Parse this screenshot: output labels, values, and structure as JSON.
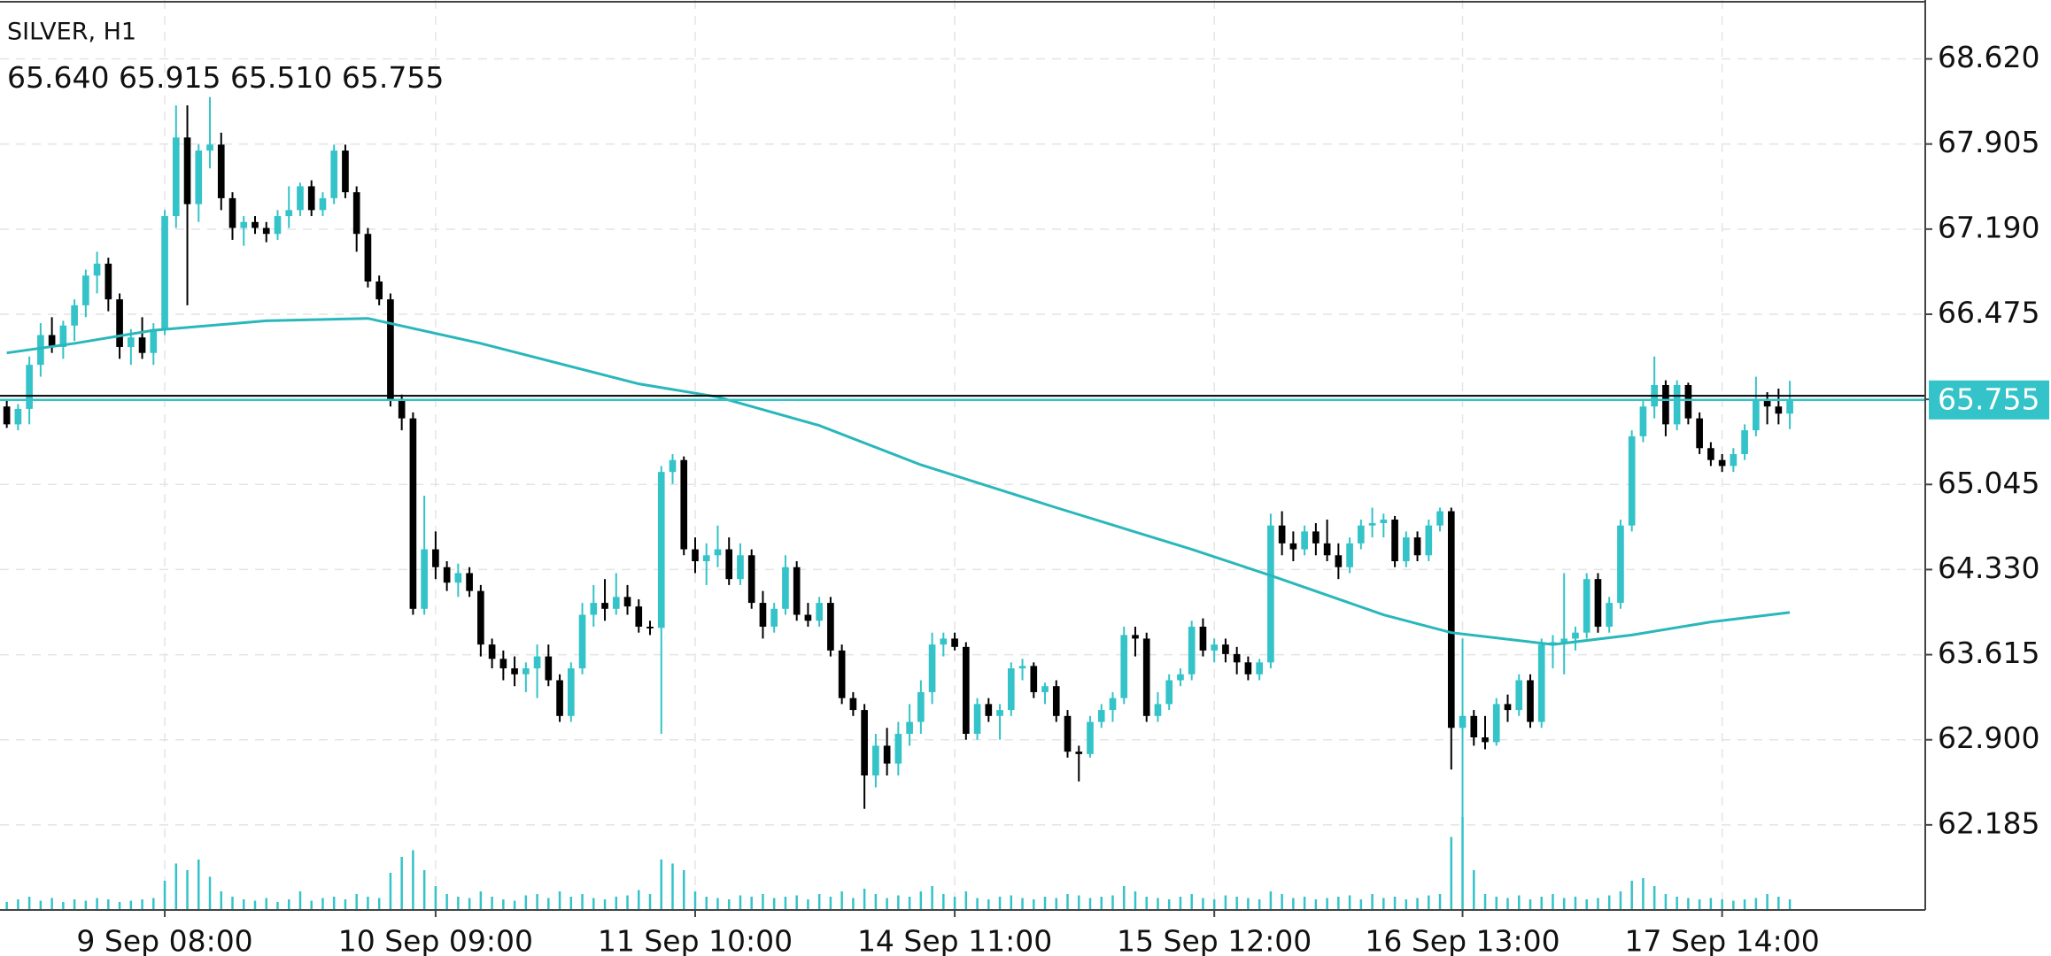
{
  "chart_data": {
    "type": "candlestick",
    "title": "SILVER, H1",
    "ohlc_labels": [
      "65.640",
      "65.915",
      "65.510",
      "65.755"
    ],
    "up_color": "#33c3c8",
    "down_color": "#000000",
    "ma_color": "#2ab7bb",
    "volume_color": "#33c3c8",
    "grid": true,
    "xlim": [
      -0.6,
      170
    ],
    "xticks": [
      {
        "value": 14,
        "label": "9 Sep 08:00"
      },
      {
        "value": 38,
        "label": "10 Sep 09:00"
      },
      {
        "value": 61,
        "label": "11 Sep 10:00"
      },
      {
        "value": 84,
        "label": "14 Sep 11:00"
      },
      {
        "value": 107,
        "label": "15 Sep 12:00"
      },
      {
        "value": 129,
        "label": "16 Sep 13:00"
      },
      {
        "value": 152,
        "label": "17 Sep 14:00"
      }
    ],
    "ylim": [
      61.47,
      69.115
    ],
    "yticks": [
      62.185,
      {
        "value": 62.9,
        "label": "62.900"
      },
      63.615,
      {
        "value": 64.33,
        "label": "64.330"
      },
      65.045,
      65.76,
      66.475,
      {
        "value": 67.19,
        "label": "67.190"
      },
      67.905,
      {
        "value": 68.62,
        "label": "68.620"
      }
    ],
    "current_price": {
      "value": 65.755,
      "label": "65.755"
    },
    "ask_line": 65.79,
    "ohlc": [
      [
        65.7,
        65.76,
        65.52,
        65.55
      ],
      [
        65.55,
        65.72,
        65.5,
        65.68
      ],
      [
        65.68,
        66.12,
        65.55,
        66.05
      ],
      [
        66.05,
        66.4,
        65.95,
        66.3
      ],
      [
        66.3,
        66.45,
        66.15,
        66.2
      ],
      [
        66.2,
        66.42,
        66.1,
        66.38
      ],
      [
        66.38,
        66.6,
        66.25,
        66.55
      ],
      [
        66.55,
        66.85,
        66.45,
        66.8
      ],
      [
        66.8,
        67.0,
        66.65,
        66.9
      ],
      [
        66.9,
        66.95,
        66.5,
        66.6
      ],
      [
        66.6,
        66.65,
        66.1,
        66.2
      ],
      [
        66.2,
        66.35,
        66.05,
        66.28
      ],
      [
        66.28,
        66.45,
        66.1,
        66.15
      ],
      [
        66.15,
        66.4,
        66.05,
        66.35
      ],
      [
        66.35,
        67.35,
        66.3,
        67.3
      ],
      [
        67.3,
        68.23,
        67.2,
        67.96
      ],
      [
        67.96,
        68.23,
        66.55,
        67.4
      ],
      [
        67.4,
        67.9,
        67.25,
        67.85
      ],
      [
        67.85,
        68.3,
        67.7,
        67.9
      ],
      [
        67.9,
        68.0,
        67.35,
        67.45
      ],
      [
        67.45,
        67.5,
        67.1,
        67.2
      ],
      [
        67.2,
        67.3,
        67.05,
        67.25
      ],
      [
        67.25,
        67.3,
        67.15,
        67.2
      ],
      [
        67.2,
        67.25,
        67.08,
        67.15
      ],
      [
        67.15,
        67.35,
        67.1,
        67.3
      ],
      [
        67.3,
        67.55,
        67.2,
        67.35
      ],
      [
        67.35,
        67.58,
        67.3,
        67.55
      ],
      [
        67.55,
        67.6,
        67.3,
        67.35
      ],
      [
        67.35,
        67.5,
        67.3,
        67.45
      ],
      [
        67.45,
        67.9,
        67.4,
        67.85
      ],
      [
        67.85,
        67.9,
        67.45,
        67.5
      ],
      [
        67.5,
        67.55,
        67.0,
        67.15
      ],
      [
        67.15,
        67.2,
        66.7,
        66.75
      ],
      [
        66.75,
        66.8,
        66.55,
        66.6
      ],
      [
        66.6,
        66.65,
        65.7,
        65.75
      ],
      [
        65.75,
        65.8,
        65.5,
        65.6
      ],
      [
        65.6,
        65.65,
        63.95,
        64.0
      ],
      [
        64.0,
        64.95,
        63.95,
        64.5
      ],
      [
        64.5,
        64.65,
        64.25,
        64.35
      ],
      [
        64.35,
        64.4,
        64.15,
        64.22
      ],
      [
        64.22,
        64.38,
        64.1,
        64.3
      ],
      [
        64.3,
        64.35,
        64.1,
        64.15
      ],
      [
        64.15,
        64.2,
        63.6,
        63.7
      ],
      [
        63.7,
        63.75,
        63.5,
        63.58
      ],
      [
        63.58,
        63.65,
        63.4,
        63.5
      ],
      [
        63.5,
        63.6,
        63.35,
        63.45
      ],
      [
        63.45,
        63.55,
        63.3,
        63.5
      ],
      [
        63.5,
        63.7,
        63.25,
        63.6
      ],
      [
        63.6,
        63.7,
        63.35,
        63.4
      ],
      [
        63.4,
        63.45,
        63.05,
        63.1
      ],
      [
        63.1,
        63.55,
        63.05,
        63.5
      ],
      [
        63.5,
        64.05,
        63.45,
        63.95
      ],
      [
        63.95,
        64.2,
        63.85,
        64.05
      ],
      [
        64.05,
        64.25,
        63.9,
        64.0
      ],
      [
        64.0,
        64.3,
        63.95,
        64.1
      ],
      [
        64.1,
        64.2,
        63.95,
        64.02
      ],
      [
        64.02,
        64.08,
        63.8,
        63.85
      ],
      [
        63.85,
        63.9,
        63.78,
        63.84
      ],
      [
        63.84,
        65.2,
        62.95,
        65.15
      ],
      [
        65.15,
        65.3,
        65.05,
        65.25
      ],
      [
        65.25,
        65.28,
        64.45,
        64.5
      ],
      [
        64.5,
        64.6,
        64.3,
        64.4
      ],
      [
        64.4,
        64.55,
        64.2,
        64.45
      ],
      [
        64.45,
        64.7,
        64.35,
        64.5
      ],
      [
        64.5,
        64.6,
        64.2,
        64.25
      ],
      [
        64.25,
        64.55,
        64.2,
        64.45
      ],
      [
        64.45,
        64.5,
        64.0,
        64.05
      ],
      [
        64.05,
        64.15,
        63.75,
        63.85
      ],
      [
        63.85,
        64.05,
        63.8,
        64.0
      ],
      [
        64.0,
        64.45,
        63.95,
        64.35
      ],
      [
        64.35,
        64.4,
        63.9,
        63.95
      ],
      [
        63.95,
        64.05,
        63.85,
        63.9
      ],
      [
        63.9,
        64.1,
        63.85,
        64.05
      ],
      [
        64.05,
        64.1,
        63.6,
        63.65
      ],
      [
        63.65,
        63.7,
        63.2,
        63.25
      ],
      [
        63.25,
        63.3,
        63.1,
        63.15
      ],
      [
        63.15,
        63.2,
        62.32,
        62.6
      ],
      [
        62.6,
        62.95,
        62.5,
        62.85
      ],
      [
        62.85,
        63.0,
        62.6,
        62.7
      ],
      [
        62.7,
        63.05,
        62.6,
        62.95
      ],
      [
        62.95,
        63.2,
        62.85,
        63.05
      ],
      [
        63.05,
        63.4,
        62.95,
        63.3
      ],
      [
        63.3,
        63.8,
        63.2,
        63.7
      ],
      [
        63.7,
        63.8,
        63.6,
        63.75
      ],
      [
        63.75,
        63.8,
        63.65,
        63.68
      ],
      [
        63.68,
        63.72,
        62.9,
        62.95
      ],
      [
        62.95,
        63.25,
        62.9,
        63.2
      ],
      [
        63.2,
        63.25,
        63.05,
        63.1
      ],
      [
        63.1,
        63.2,
        62.9,
        63.15
      ],
      [
        63.15,
        63.55,
        63.1,
        63.5
      ],
      [
        63.5,
        63.58,
        63.4,
        63.52
      ],
      [
        63.52,
        63.55,
        63.25,
        63.3
      ],
      [
        63.3,
        63.38,
        63.2,
        63.35
      ],
      [
        63.35,
        63.4,
        63.05,
        63.1
      ],
      [
        63.1,
        63.15,
        62.75,
        62.8
      ],
      [
        62.8,
        62.85,
        62.55,
        62.78
      ],
      [
        62.78,
        63.1,
        62.75,
        63.05
      ],
      [
        63.05,
        63.2,
        63.0,
        63.15
      ],
      [
        63.15,
        63.3,
        63.05,
        63.25
      ],
      [
        63.25,
        63.85,
        63.2,
        63.78
      ],
      [
        63.78,
        63.85,
        63.6,
        63.75
      ],
      [
        63.75,
        63.8,
        63.05,
        63.1
      ],
      [
        63.1,
        63.3,
        63.05,
        63.2
      ],
      [
        63.2,
        63.45,
        63.15,
        63.4
      ],
      [
        63.4,
        63.5,
        63.35,
        63.45
      ],
      [
        63.45,
        63.9,
        63.4,
        63.85
      ],
      [
        63.85,
        63.92,
        63.6,
        63.65
      ],
      [
        63.65,
        63.75,
        63.55,
        63.7
      ],
      [
        63.7,
        63.75,
        63.55,
        63.62
      ],
      [
        63.62,
        63.68,
        63.45,
        63.55
      ],
      [
        63.55,
        63.6,
        63.4,
        63.45
      ],
      [
        63.45,
        63.58,
        63.4,
        63.55
      ],
      [
        63.55,
        64.8,
        63.5,
        64.7
      ],
      [
        64.7,
        64.82,
        64.45,
        64.55
      ],
      [
        64.55,
        64.65,
        64.4,
        64.5
      ],
      [
        64.5,
        64.7,
        64.45,
        64.65
      ],
      [
        64.65,
        64.72,
        64.45,
        64.55
      ],
      [
        64.55,
        64.75,
        64.4,
        64.45
      ],
      [
        64.45,
        64.55,
        64.25,
        64.35
      ],
      [
        64.35,
        64.6,
        64.3,
        64.55
      ],
      [
        64.55,
        64.75,
        64.5,
        64.7
      ],
      [
        64.7,
        64.85,
        64.6,
        64.72
      ],
      [
        64.72,
        64.8,
        64.6,
        64.75
      ],
      [
        64.75,
        64.78,
        64.35,
        64.4
      ],
      [
        64.4,
        64.65,
        64.35,
        64.6
      ],
      [
        64.6,
        64.65,
        64.4,
        64.45
      ],
      [
        64.45,
        64.75,
        64.4,
        64.7
      ],
      [
        64.7,
        64.85,
        64.65,
        64.82
      ],
      [
        64.82,
        64.85,
        62.65,
        63.0
      ],
      [
        63.0,
        63.75,
        62.24,
        63.1
      ],
      [
        63.1,
        63.15,
        62.85,
        62.92
      ],
      [
        62.92,
        63.1,
        62.82,
        62.88
      ],
      [
        62.88,
        63.25,
        62.85,
        63.2
      ],
      [
        63.2,
        63.28,
        63.05,
        63.15
      ],
      [
        63.15,
        63.45,
        63.1,
        63.4
      ],
      [
        63.4,
        63.45,
        63.0,
        63.05
      ],
      [
        63.05,
        63.75,
        63.0,
        63.7
      ],
      [
        63.7,
        63.78,
        63.5,
        63.72
      ],
      [
        63.72,
        64.3,
        63.45,
        63.75
      ],
      [
        63.75,
        63.85,
        63.65,
        63.8
      ],
      [
        63.8,
        64.3,
        63.75,
        64.25
      ],
      [
        64.25,
        64.3,
        63.8,
        63.85
      ],
      [
        63.85,
        64.1,
        63.8,
        64.05
      ],
      [
        64.05,
        64.75,
        64.0,
        64.7
      ],
      [
        64.7,
        65.5,
        64.65,
        65.45
      ],
      [
        65.45,
        65.75,
        65.4,
        65.7
      ],
      [
        65.7,
        66.12,
        65.6,
        65.88
      ],
      [
        65.88,
        65.92,
        65.45,
        65.55
      ],
      [
        65.55,
        65.92,
        65.5,
        65.88
      ],
      [
        65.88,
        65.9,
        65.55,
        65.6
      ],
      [
        65.6,
        65.65,
        65.3,
        65.35
      ],
      [
        65.35,
        65.4,
        65.2,
        65.25
      ],
      [
        65.25,
        65.3,
        65.15,
        65.2
      ],
      [
        65.2,
        65.35,
        65.15,
        65.3
      ],
      [
        65.3,
        65.55,
        65.25,
        65.5
      ],
      [
        65.5,
        65.95,
        65.45,
        65.75
      ],
      [
        65.75,
        65.82,
        65.55,
        65.7
      ],
      [
        65.7,
        65.85,
        65.55,
        65.64
      ],
      [
        65.64,
        65.915,
        65.51,
        65.755
      ]
    ],
    "volume": [
      6,
      8,
      10,
      7,
      9,
      6,
      8,
      7,
      9,
      8,
      6,
      7,
      8,
      9,
      22,
      35,
      30,
      38,
      25,
      14,
      10,
      8,
      7,
      9,
      6,
      8,
      14,
      7,
      9,
      10,
      8,
      12,
      10,
      9,
      28,
      40,
      45,
      30,
      18,
      12,
      10,
      9,
      14,
      10,
      8,
      7,
      11,
      12,
      9,
      14,
      10,
      12,
      9,
      8,
      10,
      11,
      15,
      12,
      38,
      35,
      30,
      14,
      10,
      9,
      8,
      11,
      10,
      12,
      9,
      10,
      11,
      8,
      12,
      10,
      14,
      9,
      16,
      12,
      9,
      11,
      10,
      14,
      18,
      12,
      10,
      14,
      9,
      8,
      10,
      11,
      9,
      8,
      10,
      9,
      12,
      11,
      9,
      10,
      11,
      18,
      14,
      10,
      9,
      8,
      10,
      12,
      9,
      8,
      11,
      10,
      9,
      8,
      14,
      12,
      9,
      10,
      8,
      9,
      10,
      11,
      8,
      12,
      9,
      10,
      8,
      9,
      11,
      12,
      55,
      70,
      30,
      12,
      10,
      9,
      11,
      8,
      10,
      12,
      9,
      10,
      8,
      9,
      11,
      14,
      22,
      24,
      18,
      12,
      10,
      9,
      8,
      9,
      8,
      7,
      8,
      9,
      12,
      10,
      8
    ],
    "ma": {
      "x": [
        0,
        6,
        13,
        23,
        32,
        42,
        56,
        63,
        72,
        81,
        93,
        105,
        112,
        122,
        128,
        137,
        144,
        151,
        158
      ],
      "values": [
        66.15,
        66.23,
        66.34,
        66.42,
        66.44,
        66.23,
        65.89,
        65.78,
        65.54,
        65.21,
        64.85,
        64.5,
        64.28,
        63.95,
        63.8,
        63.7,
        63.78,
        63.89,
        63.97
      ]
    }
  }
}
